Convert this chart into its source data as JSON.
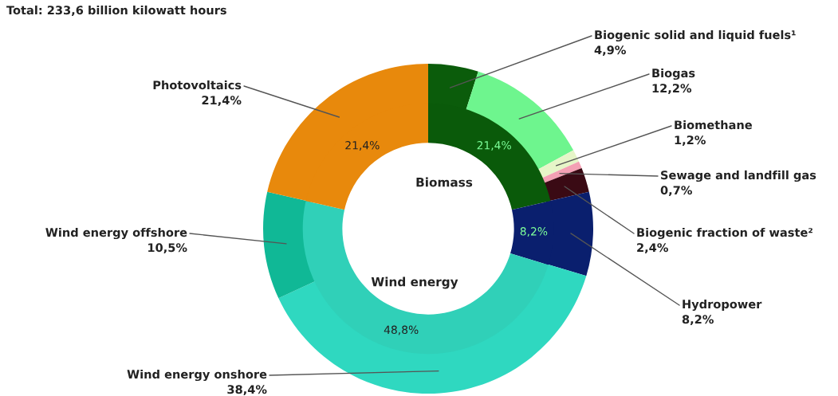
{
  "chart_data": {
    "type": "donut",
    "title": "Total: 233,6 billion kilowatt hours",
    "categories": [
      "Biogenic solid and liquid fuels¹",
      "Biogas",
      "Biomethane",
      "Sewage and landfill gas",
      "Biogenic fraction of waste²",
      "Hydropower",
      "Wind energy onshore",
      "Wind energy offshore",
      "Photovoltaics"
    ],
    "annotations": [
      "Biomass",
      "Wind energy"
    ],
    "series": [
      {
        "values": [
          4.9,
          12.2,
          1.2,
          0.7,
          2.4,
          8.2,
          38.4,
          10.5,
          21.4
        ],
        "value_labels": [
          "4,9%",
          "12,2%",
          "1,2%",
          "0,7%",
          "2,4%",
          "8,2%",
          "38,4%",
          "10,5%",
          "21,4%"
        ],
        "colors": [
          "#0b5c0b",
          "#6ef58e",
          "#e6f5c8",
          "#f4a0b4",
          "#3a0a14",
          "#0a1f6e",
          "#2fd8c0",
          "#10b896",
          "#e8890c"
        ]
      },
      {
        "values": [
          21.4,
          null,
          null,
          null,
          null,
          8.2,
          48.8,
          null,
          21.4
        ],
        "value_labels": [
          "21,4%",
          null,
          null,
          null,
          null,
          "8,2%",
          "48,8%",
          null,
          "21,4%"
        ],
        "colors": [
          "#0a5a0a",
          null,
          null,
          null,
          null,
          "#0a1f6e",
          "#30d0b8",
          null,
          "#e8890c"
        ]
      }
    ]
  }
}
